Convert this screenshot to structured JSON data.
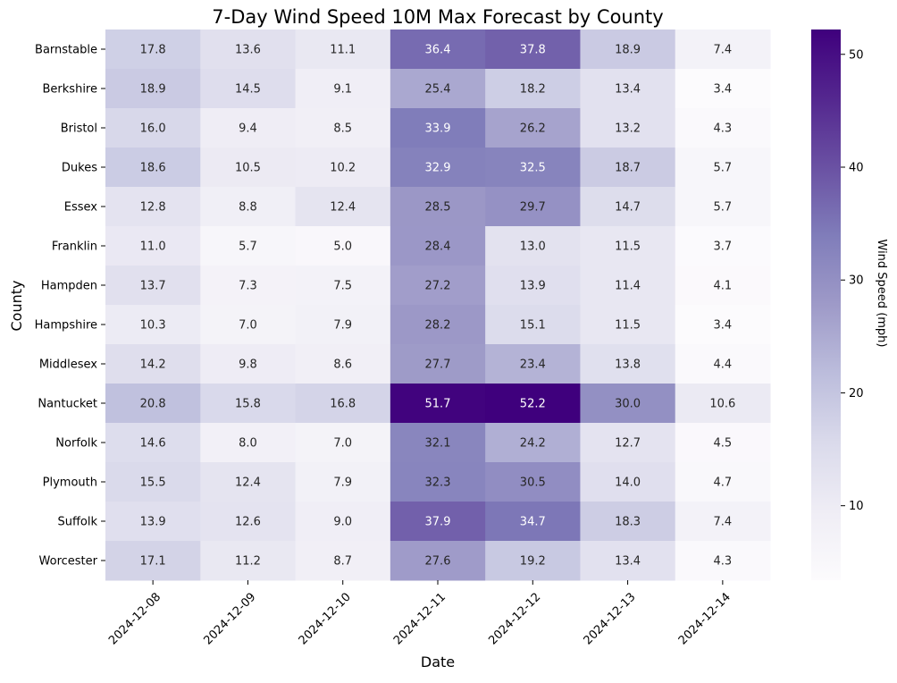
{
  "chart_data": {
    "type": "heatmap",
    "title": "7-Day Wind Speed 10M Max Forecast by County",
    "xlabel": "Date",
    "ylabel": "County",
    "x": [
      "2024-12-08",
      "2024-12-09",
      "2024-12-10",
      "2024-12-11",
      "2024-12-12",
      "2024-12-13",
      "2024-12-14"
    ],
    "y": [
      "Barnstable",
      "Berkshire",
      "Bristol",
      "Dukes",
      "Essex",
      "Franklin",
      "Hampden",
      "Hampshire",
      "Middlesex",
      "Nantucket",
      "Norfolk",
      "Plymouth",
      "Suffolk",
      "Worcester"
    ],
    "values": [
      [
        17.8,
        13.6,
        11.1,
        36.4,
        37.8,
        18.9,
        7.4
      ],
      [
        18.9,
        14.5,
        9.1,
        25.4,
        18.2,
        13.4,
        3.4
      ],
      [
        16.0,
        9.4,
        8.5,
        33.9,
        26.2,
        13.2,
        4.3
      ],
      [
        18.6,
        10.5,
        10.2,
        32.9,
        32.5,
        18.7,
        5.7
      ],
      [
        12.8,
        8.8,
        12.4,
        28.5,
        29.7,
        14.7,
        5.7
      ],
      [
        11.0,
        5.7,
        5.0,
        28.4,
        13.0,
        11.5,
        3.7
      ],
      [
        13.7,
        7.3,
        7.5,
        27.2,
        13.9,
        11.4,
        4.1
      ],
      [
        10.3,
        7.0,
        7.9,
        28.2,
        15.1,
        11.5,
        3.4
      ],
      [
        14.2,
        9.8,
        8.6,
        27.7,
        23.4,
        13.8,
        4.4
      ],
      [
        20.8,
        15.8,
        16.8,
        51.7,
        52.2,
        30.0,
        10.6
      ],
      [
        14.6,
        8.0,
        7.0,
        32.1,
        24.2,
        12.7,
        4.5
      ],
      [
        15.5,
        12.4,
        7.9,
        32.3,
        30.5,
        14.0,
        4.7
      ],
      [
        13.9,
        12.6,
        9.0,
        37.9,
        34.7,
        18.3,
        7.4
      ],
      [
        17.1,
        11.2,
        8.7,
        27.6,
        19.2,
        13.4,
        4.3
      ]
    ],
    "colorbar": {
      "label": "Wind Speed (mph)",
      "range": [
        3.4,
        52.2
      ],
      "ticks": [
        10,
        20,
        30,
        40,
        50
      ],
      "colormap": "Purples",
      "stops": [
        "#fcfbfd",
        "#efedf5",
        "#dadaeb",
        "#bcbddc",
        "#9e9ac8",
        "#807dba",
        "#6a51a3",
        "#54278f",
        "#3f007d"
      ]
    },
    "annotation_format": "0.1f",
    "text_color_light": "#ffffff",
    "text_color_dark": "#262626"
  }
}
